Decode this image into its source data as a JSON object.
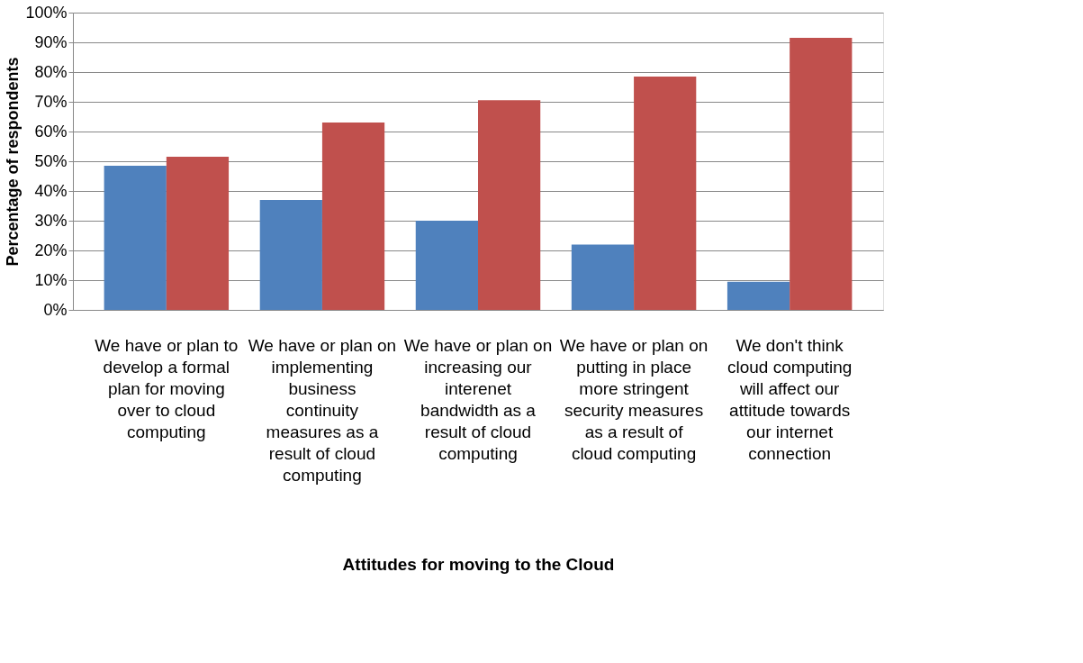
{
  "chart_data": {
    "type": "bar",
    "xlabel": "Attitudes for moving to the Cloud",
    "ylabel": "Percentage of respondents",
    "categories": [
      "We have or plan to develop a formal plan for moving over to cloud computing",
      "We have or plan on implementing business continuity measures as a result of cloud computing",
      "We have or plan on increasing our interenet bandwidth as a result of cloud computing",
      "We have or plan on putting in place more stringent security measures as a result of cloud computing",
      "We don't think cloud computing will affect our attitude towards our internet connection"
    ],
    "series": [
      {
        "color": "#4f81bd",
        "values": [
          48.5,
          37,
          30,
          22,
          9.5
        ]
      },
      {
        "color": "#c0504d",
        "values": [
          51.5,
          63,
          70.5,
          78.5,
          91.5
        ]
      }
    ],
    "ylim": [
      0,
      100
    ],
    "yticks": [
      {
        "value": 0,
        "label": "0%"
      },
      {
        "value": 10,
        "label": "10%"
      },
      {
        "value": 20,
        "label": "20%"
      },
      {
        "value": 30,
        "label": "30%"
      },
      {
        "value": 40,
        "label": "40%"
      },
      {
        "value": 50,
        "label": "50%"
      },
      {
        "value": 60,
        "label": "60%"
      },
      {
        "value": 70,
        "label": "70%"
      },
      {
        "value": 80,
        "label": "80%"
      },
      {
        "value": 90,
        "label": "90%"
      },
      {
        "value": 100,
        "label": "100%"
      }
    ],
    "grid": "y",
    "legend": false
  }
}
